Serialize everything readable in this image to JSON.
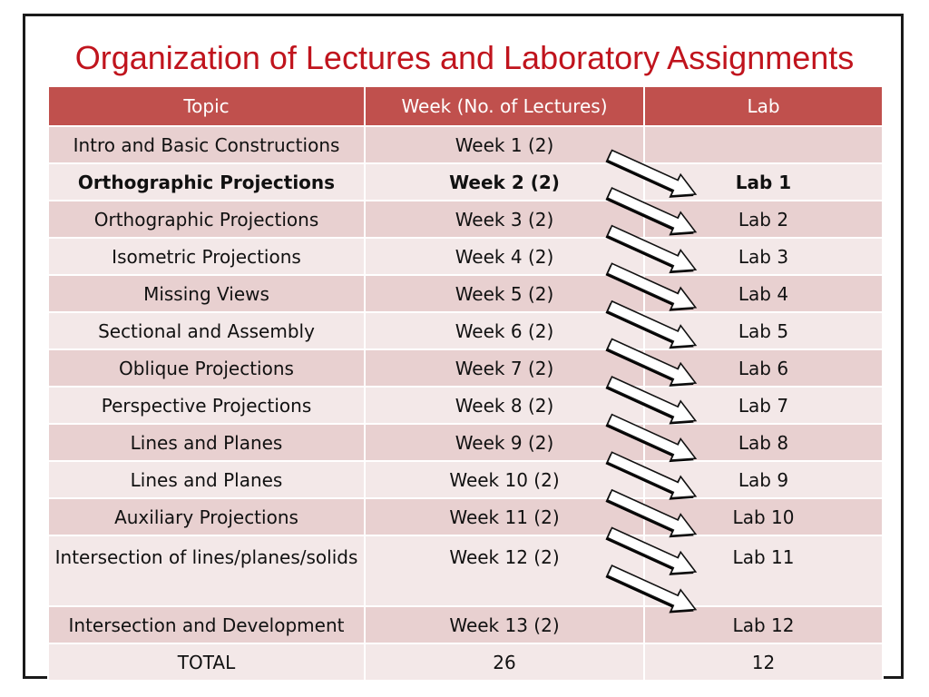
{
  "slide": {
    "title": "Organization of Lectures and Laboratory Assignments"
  },
  "table": {
    "headers": [
      "Topic",
      "Week (No. of Lectures)",
      "Lab"
    ],
    "rows": [
      {
        "topic": "Intro and Basic Constructions",
        "week": "Week 1 (2)",
        "lab": ""
      },
      {
        "topic": "Orthographic Projections",
        "week": "Week 2 (2)",
        "lab": "Lab 1",
        "bold": true
      },
      {
        "topic": "Orthographic Projections",
        "week": "Week 3 (2)",
        "lab": "Lab 2"
      },
      {
        "topic": "Isometric Projections",
        "week": "Week 4 (2)",
        "lab": "Lab 3"
      },
      {
        "topic": "Missing Views",
        "week": "Week 5 (2)",
        "lab": "Lab 4"
      },
      {
        "topic": "Sectional and Assembly",
        "week": "Week 6 (2)",
        "lab": "Lab 5"
      },
      {
        "topic": "Oblique Projections",
        "week": "Week 7 (2)",
        "lab": "Lab 6"
      },
      {
        "topic": "Perspective Projections",
        "week": "Week 8 (2)",
        "lab": "Lab 7"
      },
      {
        "topic": "Lines and Planes",
        "week": "Week 9 (2)",
        "lab": "Lab 8"
      },
      {
        "topic": "Lines and Planes",
        "week": "Week 10 (2)",
        "lab": "Lab 9"
      },
      {
        "topic": "Auxiliary Projections",
        "week": "Week 11 (2)",
        "lab": "Lab 10"
      },
      {
        "topic": "Intersection of lines/planes/solids",
        "week": "Week 12 (2)",
        "lab": "Lab 11"
      },
      {
        "topic": "Intersection and Development",
        "week": "Week 13 (2)",
        "lab": "Lab 12"
      },
      {
        "topic": "TOTAL",
        "week": "26",
        "lab": "12"
      }
    ]
  },
  "colors": {
    "title": "#c0141d",
    "header_bg": "#c0504d",
    "row_odd": "#e8d0d0",
    "row_even": "#f3e8e8"
  },
  "arrows": {
    "icon": "block-arrow-right-down-icon",
    "count": 12
  }
}
